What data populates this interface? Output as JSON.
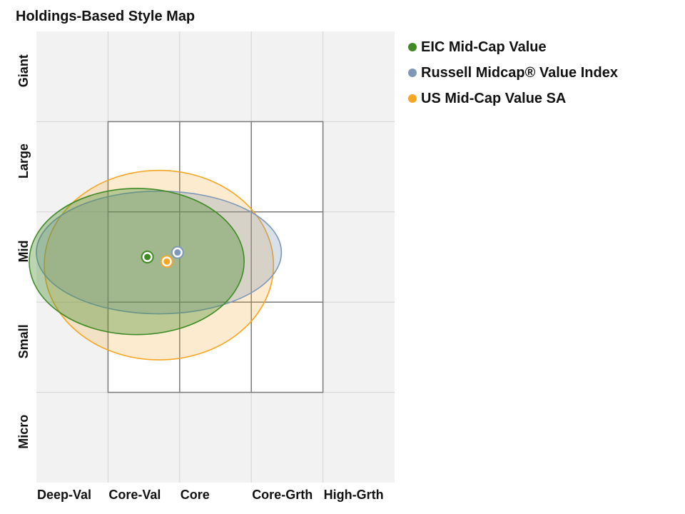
{
  "title": "Holdings-Based Style Map",
  "chart_data": {
    "type": "scatter",
    "title": "Holdings-Based Style Map",
    "x_categories": [
      "Deep-Val",
      "Core-Val",
      "Core",
      "Core-Grth",
      "High-Grth"
    ],
    "y_categories": [
      "Micro",
      "Small",
      "Mid",
      "Large",
      "Giant"
    ],
    "xlim": [
      0,
      5
    ],
    "ylim": [
      0,
      5
    ],
    "grid": true,
    "legend": "top-right",
    "series": [
      {
        "name": "EIC Mid-Cap Value",
        "color": "#3f8a24",
        "centroid": [
          1.55,
          2.5
        ],
        "zone": {
          "x_center": 1.4,
          "y_center": 2.45,
          "x_radius": 1.5,
          "y_radius": 0.81
        }
      },
      {
        "name": "Russell Midcap® Value Index",
        "color": "#7f98b8",
        "centroid": [
          1.97,
          2.55
        ],
        "zone": {
          "x_center": 1.71,
          "y_center": 2.55,
          "x_radius": 1.71,
          "y_radius": 0.68
        }
      },
      {
        "name": "US Mid-Cap Value SA",
        "color": "#f5a623",
        "centroid": [
          1.82,
          2.45
        ],
        "zone": {
          "x_center": 1.71,
          "y_center": 2.41,
          "x_radius": 1.6,
          "y_radius": 1.05
        }
      }
    ]
  }
}
